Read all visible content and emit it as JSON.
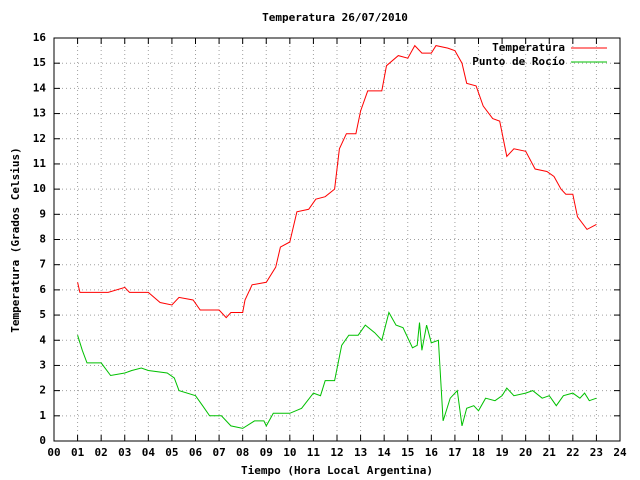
{
  "chart_data": {
    "type": "line",
    "title": "Temperatura 26/07/2010",
    "x_label": "Tiempo (Hora Local Argentina)",
    "y_label": "Temperatura (Grados Celsius)",
    "xlim": [
      0,
      24
    ],
    "ylim": [
      0,
      16
    ],
    "xticks": [
      {
        "value": 0,
        "label": "00"
      },
      {
        "value": 1,
        "label": "01"
      },
      {
        "value": 2,
        "label": "02"
      },
      {
        "value": 3,
        "label": "03"
      },
      {
        "value": 4,
        "label": "04"
      },
      {
        "value": 5,
        "label": "05"
      },
      {
        "value": 6,
        "label": "06"
      },
      {
        "value": 7,
        "label": "07"
      },
      {
        "value": 8,
        "label": "08"
      },
      {
        "value": 9,
        "label": "09"
      },
      {
        "value": 10,
        "label": "10"
      },
      {
        "value": 11,
        "label": "11"
      },
      {
        "value": 12,
        "label": "12"
      },
      {
        "value": 13,
        "label": "13"
      },
      {
        "value": 14,
        "label": "14"
      },
      {
        "value": 15,
        "label": "15"
      },
      {
        "value": 16,
        "label": "16"
      },
      {
        "value": 17,
        "label": "17"
      },
      {
        "value": 18,
        "label": "18"
      },
      {
        "value": 19,
        "label": "19"
      },
      {
        "value": 20,
        "label": "20"
      },
      {
        "value": 21,
        "label": "21"
      },
      {
        "value": 22,
        "label": "22"
      },
      {
        "value": 23,
        "label": "23"
      },
      {
        "value": 24,
        "label": "24"
      }
    ],
    "yticks": [
      0,
      1,
      2,
      3,
      4,
      5,
      6,
      7,
      8,
      9,
      10,
      11,
      12,
      13,
      14,
      15,
      16
    ],
    "grid": true,
    "legend": "top-right",
    "series": [
      {
        "name": "Temperatura",
        "color": "#ff0000",
        "x": [
          1.0,
          1.1,
          2.3,
          3.0,
          3.2,
          4.0,
          4.5,
          5.0,
          5.3,
          5.9,
          6.2,
          7.0,
          7.3,
          7.5,
          8.0,
          8.1,
          8.4,
          9.0,
          9.4,
          9.6,
          10.0,
          10.3,
          10.8,
          11.1,
          11.5,
          11.9,
          12.1,
          12.4,
          12.8,
          13.0,
          13.3,
          13.9,
          14.1,
          14.6,
          15.0,
          15.3,
          15.6,
          16.0,
          16.2,
          16.7,
          17.0,
          17.3,
          17.5,
          17.9,
          18.2,
          18.6,
          18.9,
          19.2,
          19.5,
          20.0,
          20.4,
          20.9,
          21.2,
          21.5,
          21.7,
          22.0,
          22.2,
          22.6,
          23.0
        ],
        "values": [
          6.3,
          5.9,
          5.9,
          6.1,
          5.9,
          5.9,
          5.5,
          5.4,
          5.7,
          5.6,
          5.2,
          5.2,
          4.9,
          5.1,
          5.1,
          5.6,
          6.2,
          6.3,
          6.9,
          7.7,
          7.9,
          9.1,
          9.2,
          9.6,
          9.7,
          10.0,
          11.6,
          12.2,
          12.2,
          13.1,
          13.9,
          13.9,
          14.9,
          15.3,
          15.2,
          15.7,
          15.4,
          15.4,
          15.7,
          15.6,
          15.5,
          15.0,
          14.2,
          14.1,
          13.3,
          12.8,
          12.7,
          11.3,
          11.6,
          11.5,
          10.8,
          10.7,
          10.5,
          10.0,
          9.8,
          9.8,
          8.9,
          8.4,
          8.6
        ]
      },
      {
        "name": "Punto de Rocío",
        "color": "#00c000",
        "x": [
          1.0,
          1.2,
          1.4,
          2.0,
          2.4,
          3.0,
          3.3,
          3.7,
          4.0,
          4.8,
          5.1,
          5.3,
          6.0,
          6.3,
          6.6,
          7.1,
          7.5,
          8.0,
          8.5,
          8.9,
          9.0,
          9.3,
          10.0,
          10.5,
          11.0,
          11.3,
          11.5,
          11.9,
          12.2,
          12.5,
          12.9,
          13.2,
          13.6,
          13.9,
          14.2,
          14.5,
          14.8,
          15.2,
          15.4,
          15.5,
          15.6,
          15.8,
          16.0,
          16.3,
          16.5,
          16.8,
          17.1,
          17.3,
          17.5,
          17.8,
          18.0,
          18.3,
          18.7,
          19.0,
          19.2,
          19.5,
          20.0,
          20.3,
          20.7,
          21.0,
          21.3,
          21.6,
          22.0,
          22.3,
          22.5,
          22.7,
          23.0
        ],
        "values": [
          4.2,
          3.6,
          3.1,
          3.1,
          2.6,
          2.7,
          2.8,
          2.9,
          2.8,
          2.7,
          2.5,
          2.0,
          1.8,
          1.4,
          1.0,
          1.0,
          0.6,
          0.5,
          0.8,
          0.8,
          0.6,
          1.1,
          1.1,
          1.3,
          1.9,
          1.8,
          2.4,
          2.4,
          3.8,
          4.2,
          4.2,
          4.6,
          4.3,
          4.0,
          5.1,
          4.6,
          4.5,
          3.7,
          3.8,
          4.7,
          3.6,
          4.6,
          3.9,
          4.0,
          0.8,
          1.7,
          2.0,
          0.6,
          1.3,
          1.4,
          1.2,
          1.7,
          1.6,
          1.8,
          2.1,
          1.8,
          1.9,
          2.0,
          1.7,
          1.8,
          1.4,
          1.8,
          1.9,
          1.7,
          1.9,
          1.6,
          1.7
        ]
      }
    ]
  }
}
